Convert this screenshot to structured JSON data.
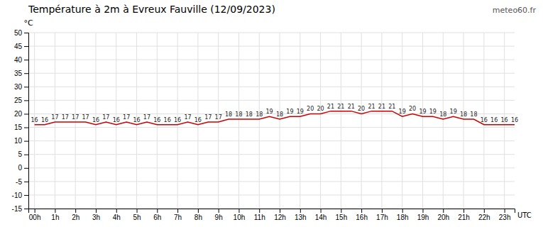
{
  "chart_data": {
    "type": "line",
    "title": "Température à 2m à Evreux Fauville (12/09/2023)",
    "ylabel": "°C",
    "annotations": [
      "UTC",
      "meteo60.fr"
    ],
    "x": [
      0,
      0.5,
      1,
      1.5,
      2,
      2.5,
      3,
      3.5,
      4,
      4.5,
      5,
      5.5,
      6,
      6.5,
      7,
      7.5,
      8,
      8.5,
      9,
      9.5,
      10,
      10.5,
      11,
      11.5,
      12,
      12.5,
      13,
      13.5,
      14,
      14.5,
      15,
      15.5,
      16,
      16.5,
      17,
      17.5,
      18,
      18.5,
      19,
      19.5,
      20,
      20.5,
      21,
      21.5,
      22,
      22.5,
      23,
      23.5
    ],
    "values": [
      16,
      16,
      17,
      17,
      17,
      17,
      16,
      17,
      16,
      17,
      16,
      17,
      16,
      16,
      16,
      17,
      16,
      17,
      17,
      18,
      18,
      18,
      18,
      19,
      18,
      19,
      19,
      20,
      20,
      21,
      21,
      21,
      20,
      21,
      21,
      21,
      19,
      20,
      19,
      19,
      18,
      19,
      18,
      18,
      16,
      16,
      16,
      16
    ],
    "color": "#cc0000",
    "xlim": [
      -0.3,
      23.5
    ],
    "xticks": [
      {
        "value": 0,
        "label": "00h"
      },
      {
        "value": 1,
        "label": "1h"
      },
      {
        "value": 2,
        "label": "2h"
      },
      {
        "value": 3,
        "label": "3h"
      },
      {
        "value": 4,
        "label": "4h"
      },
      {
        "value": 5,
        "label": "5h"
      },
      {
        "value": 6,
        "label": "6h"
      },
      {
        "value": 7,
        "label": "7h"
      },
      {
        "value": 8,
        "label": "8h"
      },
      {
        "value": 9,
        "label": "9h"
      },
      {
        "value": 10,
        "label": "10h"
      },
      {
        "value": 11,
        "label": "11h"
      },
      {
        "value": 12,
        "label": "12h"
      },
      {
        "value": 13,
        "label": "13h"
      },
      {
        "value": 14,
        "label": "14h"
      },
      {
        "value": 15,
        "label": "15h"
      },
      {
        "value": 16,
        "label": "16h"
      },
      {
        "value": 17,
        "label": "17h"
      },
      {
        "value": 18,
        "label": "18h"
      },
      {
        "value": 19,
        "label": "19h"
      },
      {
        "value": 20,
        "label": "20h"
      },
      {
        "value": 21,
        "label": "21h"
      },
      {
        "value": 22,
        "label": "22h"
      },
      {
        "value": 23,
        "label": "23h"
      }
    ],
    "ylim": [
      -15,
      50
    ],
    "yticks": [
      -15,
      -10,
      -5,
      0,
      5,
      10,
      15,
      20,
      25,
      30,
      35,
      40,
      45,
      50
    ],
    "grid": true,
    "data_labels": true
  }
}
